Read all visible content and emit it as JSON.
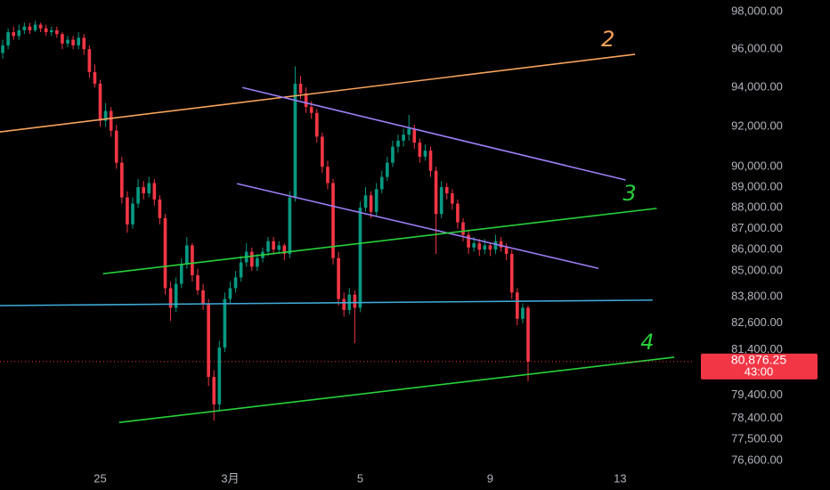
{
  "chart_data": {
    "type": "candlestick",
    "log_scale": true,
    "background": "#000000",
    "up_color": "#089981",
    "down_color": "#f23645",
    "xlim": [
      -74,
      439
    ],
    "xticks": [
      {
        "value": 0,
        "label": "25"
      },
      {
        "value": 96,
        "label": "3月"
      },
      {
        "value": 192,
        "label": "5"
      },
      {
        "value": 288,
        "label": "9"
      },
      {
        "value": 384,
        "label": "13"
      }
    ],
    "ylim": [
      76114,
      98625
    ],
    "yticks": [
      {
        "value": 98000,
        "label": "98,000.00"
      },
      {
        "value": 96000,
        "label": "96,000.00"
      },
      {
        "value": 94000,
        "label": "94,000.00"
      },
      {
        "value": 92000,
        "label": "92,000.00"
      },
      {
        "value": 90000,
        "label": "90,000.00"
      },
      {
        "value": 89000,
        "label": "89,000.00"
      },
      {
        "value": 88000,
        "label": "88,000.00"
      },
      {
        "value": 87000,
        "label": "87,000.00"
      },
      {
        "value": 86000,
        "label": "86,000.00"
      },
      {
        "value": 85000,
        "label": "85,000.00"
      },
      {
        "value": 83800,
        "label": "83,800.00"
      },
      {
        "value": 82600,
        "label": "82,600.00"
      },
      {
        "value": 81400,
        "label": "81,400.00"
      },
      {
        "value": 79400,
        "label": "79,400.00"
      },
      {
        "value": 78400,
        "label": "78,400.00"
      },
      {
        "value": 77500,
        "label": "77,500.00"
      },
      {
        "value": 76600,
        "label": "76,600.00"
      }
    ],
    "x": [
      -72,
      -68,
      -64,
      -60,
      -56,
      -52,
      -48,
      -44,
      -40,
      -36,
      -32,
      -28,
      -24,
      -20,
      -16,
      -12,
      -8,
      -4,
      0,
      4,
      8,
      12,
      16,
      20,
      24,
      28,
      32,
      36,
      40,
      44,
      48,
      52,
      56,
      60,
      64,
      68,
      72,
      76,
      80,
      84,
      88,
      92,
      96,
      100,
      104,
      108,
      112,
      116,
      120,
      124,
      128,
      132,
      136,
      140,
      144,
      148,
      152,
      156,
      160,
      164,
      168,
      172,
      176,
      180,
      184,
      188,
      192,
      196,
      200,
      204,
      208,
      212,
      216,
      220,
      224,
      228,
      232,
      236,
      240,
      244,
      248,
      252,
      256,
      260,
      264,
      268,
      272,
      276,
      280,
      284,
      288,
      292,
      296,
      300,
      304,
      308,
      312,
      316
    ],
    "open": [
      95800,
      96200,
      96900,
      96700,
      97000,
      97200,
      97000,
      97300,
      97100,
      96900,
      97000,
      96800,
      96300,
      96500,
      96200,
      96600,
      96000,
      94800,
      94200,
      92300,
      92800,
      91800,
      90200,
      88500,
      87200,
      88200,
      89000,
      88700,
      89200,
      88400,
      87500,
      84200,
      83300,
      84400,
      85300,
      86200,
      84800,
      84100,
      83500,
      80200,
      79000,
      81500,
      83700,
      84200,
      84700,
      85400,
      85900,
      85200,
      85600,
      85900,
      86400,
      86000,
      86200,
      85800,
      88500,
      94200,
      93700,
      93000,
      92700,
      91500,
      90000,
      89200,
      85600,
      83700,
      83200,
      83900,
      83300,
      88000,
      88600,
      87800,
      88900,
      89500,
      90200,
      91000,
      91300,
      91600,
      91900,
      91200,
      90500,
      90800,
      89800,
      87700,
      89000,
      88700,
      88200,
      87300,
      86700,
      86100,
      86300,
      86000,
      86200,
      86000,
      86400,
      86100,
      85800,
      84000,
      82800,
      83300
    ],
    "high": [
      96500,
      97100,
      97200,
      97300,
      97400,
      97400,
      97500,
      97400,
      97300,
      97200,
      97200,
      96900,
      96700,
      96700,
      96900,
      96800,
      96200,
      95200,
      94400,
      93200,
      93000,
      92100,
      90500,
      88800,
      88500,
      89400,
      89300,
      89500,
      89400,
      88600,
      87700,
      84500,
      84700,
      85600,
      86600,
      86300,
      85100,
      84400,
      83700,
      80500,
      81800,
      84000,
      84500,
      85000,
      85700,
      86300,
      86100,
      85800,
      86100,
      86600,
      86600,
      86400,
      86300,
      88800,
      95100,
      94600,
      94000,
      93300,
      92900,
      91700,
      90300,
      89400,
      85900,
      84000,
      84200,
      84100,
      88300,
      89000,
      88800,
      89200,
      89800,
      90500,
      91300,
      91600,
      91900,
      92600,
      92100,
      91400,
      91100,
      91000,
      90000,
      89300,
      89200,
      88900,
      88400,
      87500,
      86900,
      86600,
      86500,
      86500,
      86300,
      86700,
      86600,
      86300,
      86000,
      84200,
      83500,
      83400
    ],
    "low": [
      95500,
      96000,
      96500,
      96500,
      96800,
      96800,
      96900,
      96900,
      96700,
      96700,
      96600,
      96000,
      96100,
      96000,
      96000,
      95700,
      94500,
      94000,
      92000,
      92000,
      91500,
      89900,
      88200,
      86800,
      87000,
      88000,
      88400,
      88500,
      88100,
      87200,
      83900,
      82700,
      83100,
      84200,
      85100,
      84500,
      83900,
      83200,
      79800,
      78300,
      78700,
      81300,
      83500,
      84000,
      84500,
      85200,
      85000,
      85000,
      85400,
      85700,
      85800,
      85800,
      85500,
      85600,
      88300,
      93400,
      92700,
      92400,
      91200,
      89700,
      88900,
      85300,
      83400,
      82900,
      83000,
      81700,
      83100,
      87800,
      87500,
      87600,
      88700,
      89300,
      90000,
      90700,
      91000,
      91300,
      90900,
      90200,
      90300,
      89500,
      85800,
      87500,
      88400,
      87900,
      87000,
      86400,
      85800,
      85900,
      85700,
      85800,
      85700,
      85800,
      85900,
      85500,
      83700,
      82500,
      82600,
      80000
    ],
    "close": [
      96200,
      96900,
      96700,
      97000,
      97200,
      97000,
      97300,
      97100,
      96900,
      97000,
      96800,
      96300,
      96500,
      96200,
      96600,
      96000,
      94800,
      94200,
      92300,
      92800,
      91800,
      90200,
      88500,
      87200,
      88200,
      89000,
      88700,
      89200,
      88400,
      87500,
      84200,
      83300,
      84400,
      85300,
      86200,
      84800,
      84100,
      83500,
      80200,
      79000,
      81500,
      83700,
      84200,
      84700,
      85400,
      85900,
      85200,
      85600,
      85900,
      86400,
      86000,
      86200,
      85800,
      88500,
      94200,
      93700,
      93000,
      92700,
      91500,
      90000,
      89200,
      85600,
      83700,
      83200,
      83900,
      83300,
      88000,
      88600,
      87800,
      88900,
      89500,
      90200,
      91000,
      91300,
      91600,
      91900,
      91200,
      90500,
      90800,
      89800,
      87700,
      89000,
      88700,
      88200,
      87300,
      86700,
      86100,
      86300,
      86000,
      86200,
      86000,
      86400,
      86100,
      85800,
      84000,
      82800,
      83300,
      80876
    ],
    "last_price": {
      "value": 80876.25,
      "label": "80,876.25"
    },
    "countdown": "43:00",
    "trendlines": [
      {
        "color": "#f7a35c",
        "x1": -74,
        "y1": 91740,
        "x2": 395,
        "y2": 95730,
        "label": "2"
      },
      {
        "color": "#9c7cf4",
        "x1": 105,
        "y1": 94000,
        "x2": 388,
        "y2": 89350
      },
      {
        "color": "#9c7cf4",
        "x1": 101,
        "y1": 89170,
        "x2": 368,
        "y2": 85120
      },
      {
        "color": "#27d13a",
        "x1": 2,
        "y1": 84870,
        "x2": 411,
        "y2": 87970,
        "label": "3"
      },
      {
        "color": "#27d13a",
        "x1": 14,
        "y1": 78220,
        "x2": 424,
        "y2": 81070,
        "label": "4"
      },
      {
        "color": "#3fa9d6",
        "x1": -74,
        "y1": 83400,
        "x2": 408,
        "y2": 83650
      }
    ]
  }
}
